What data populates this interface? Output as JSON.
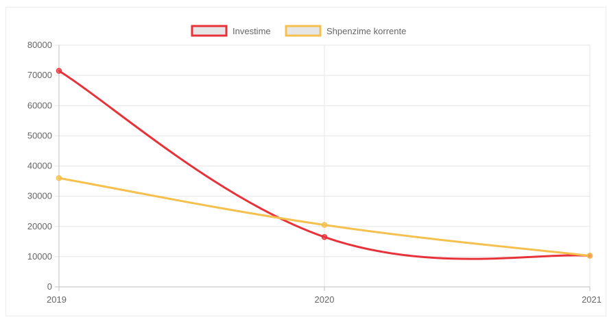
{
  "chart_data": {
    "type": "line",
    "categories": [
      "2019",
      "2020",
      "2021"
    ],
    "series": [
      {
        "name": "Investime",
        "values": [
          71500,
          16500,
          10300
        ],
        "color": "#e8323a",
        "legend_fill": "#e6e6e6"
      },
      {
        "name": "Shpenzime korrente",
        "values": [
          36000,
          20500,
          10300
        ],
        "color": "#f5c04d",
        "legend_fill": "#e6e6e6"
      }
    ],
    "ylim": [
      0,
      80000
    ],
    "yticks": [
      "0",
      "10000",
      "20000",
      "30000",
      "40000",
      "50000",
      "60000",
      "70000",
      "80000"
    ],
    "grid": true,
    "legend": "top-center",
    "gridline_color": "#e5e5e5",
    "axis_color": "#bfbfbf"
  }
}
